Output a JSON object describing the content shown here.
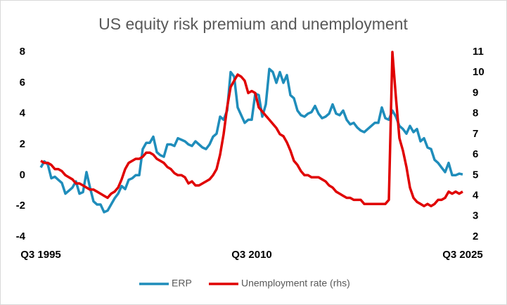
{
  "chart_data": {
    "type": "line",
    "title": "US equity risk premium and unemployment",
    "categories": [
      "Q3 1995",
      null,
      null,
      null,
      null,
      null,
      null,
      null,
      null,
      null,
      null,
      null,
      null,
      null,
      null,
      null,
      null,
      null,
      null,
      null,
      null,
      null,
      null,
      null,
      null,
      null,
      null,
      null,
      null,
      null,
      null,
      null,
      null,
      null,
      null,
      null,
      null,
      null,
      null,
      null,
      null,
      null,
      null,
      null,
      null,
      null,
      null,
      null,
      null,
      null,
      null,
      null,
      null,
      null,
      null,
      null,
      null,
      null,
      null,
      null,
      "Q3 2010",
      null,
      null,
      null,
      null,
      null,
      null,
      null,
      null,
      null,
      null,
      null,
      null,
      null,
      null,
      null,
      null,
      null,
      null,
      null,
      null,
      null,
      null,
      null,
      null,
      null,
      null,
      null,
      null,
      null,
      null,
      null,
      null,
      null,
      null,
      null,
      null,
      null,
      null,
      null,
      null,
      null,
      null,
      null,
      null,
      null,
      null,
      null,
      null,
      null,
      null,
      null,
      null,
      null,
      null,
      null,
      null,
      null,
      null,
      null,
      "Q3 2025"
    ],
    "series": [
      {
        "name": "ERP",
        "color": "#1f8dbb",
        "axis": "y",
        "values": [
          0.5,
          0.9,
          0.7,
          -0.2,
          -0.1,
          -0.3,
          -0.5,
          -1.2,
          -1.0,
          -0.8,
          -0.4,
          -1.2,
          -1.1,
          0.2,
          -0.8,
          -1.7,
          -1.9,
          -1.9,
          -2.4,
          -2.3,
          -1.9,
          -1.5,
          -1.2,
          -0.7,
          -0.9,
          -0.3,
          -0.2,
          0.0,
          0.0,
          1.7,
          2.1,
          2.1,
          2.5,
          1.5,
          1.3,
          1.2,
          2.0,
          2.0,
          1.9,
          2.4,
          2.3,
          2.2,
          2.0,
          1.9,
          2.2,
          2.0,
          1.8,
          1.7,
          2.0,
          2.5,
          2.7,
          3.8,
          3.6,
          4.2,
          6.7,
          6.4,
          4.4,
          3.9,
          3.4,
          3.6,
          3.6,
          5.3,
          5.2,
          3.8,
          4.6,
          6.9,
          6.7,
          6.0,
          6.7,
          6.0,
          6.5,
          5.2,
          5.0,
          4.2,
          3.9,
          3.8,
          4.0,
          4.1,
          4.5,
          4.0,
          3.7,
          3.8,
          4.0,
          4.6,
          4.0,
          3.9,
          4.2,
          3.6,
          3.3,
          3.4,
          3.1,
          2.9,
          2.8,
          3.0,
          3.2,
          3.4,
          3.4,
          4.4,
          3.7,
          3.6,
          4.2,
          3.8,
          3.2,
          3.0,
          2.7,
          3.2,
          2.8,
          3.0,
          2.2,
          2.4,
          1.8,
          1.7,
          1.0,
          0.8,
          0.5,
          0.2,
          0.8,
          0.0,
          0.0,
          0.1,
          0.05
        ]
      },
      {
        "name": "Unemployment rate (rhs)",
        "color": "#e00000",
        "axis": "y2",
        "values": [
          5.7,
          5.6,
          5.6,
          5.5,
          5.3,
          5.3,
          5.2,
          5.0,
          4.9,
          4.8,
          4.6,
          4.6,
          4.5,
          4.4,
          4.3,
          4.3,
          4.2,
          4.1,
          4.0,
          3.9,
          4.1,
          4.2,
          4.4,
          4.8,
          5.3,
          5.6,
          5.7,
          5.8,
          5.8,
          5.9,
          6.1,
          6.1,
          6.0,
          5.8,
          5.7,
          5.6,
          5.4,
          5.3,
          5.1,
          5.0,
          5.0,
          4.9,
          4.6,
          4.7,
          4.5,
          4.5,
          4.6,
          4.7,
          4.8,
          5.0,
          5.3,
          6.0,
          7.0,
          8.3,
          9.3,
          9.6,
          9.9,
          9.8,
          9.6,
          9.0,
          9.1,
          9.0,
          8.3,
          8.1,
          7.9,
          7.7,
          7.5,
          7.3,
          7.0,
          6.9,
          6.6,
          6.2,
          5.7,
          5.5,
          5.2,
          5.0,
          5.0,
          4.9,
          4.9,
          4.9,
          4.8,
          4.7,
          4.5,
          4.4,
          4.2,
          4.1,
          4.0,
          3.9,
          3.9,
          3.8,
          3.8,
          3.8,
          3.6,
          3.6,
          3.6,
          3.6,
          3.6,
          3.6,
          3.6,
          3.8,
          11.0,
          8.8,
          6.8,
          6.2,
          5.4,
          4.4,
          3.9,
          3.7,
          3.6,
          3.5,
          3.6,
          3.5,
          3.6,
          3.8,
          3.8,
          3.9,
          4.2,
          4.1,
          4.2,
          4.1,
          4.2
        ]
      }
    ],
    "ylim": [
      -4,
      8
    ],
    "yticks": [
      -4,
      -2,
      0,
      2,
      4,
      6,
      8
    ],
    "y2lim": [
      2,
      11
    ],
    "y2ticks": [
      2,
      3,
      4,
      5,
      6,
      7,
      8,
      9,
      10,
      11
    ],
    "legend": "bottom"
  }
}
